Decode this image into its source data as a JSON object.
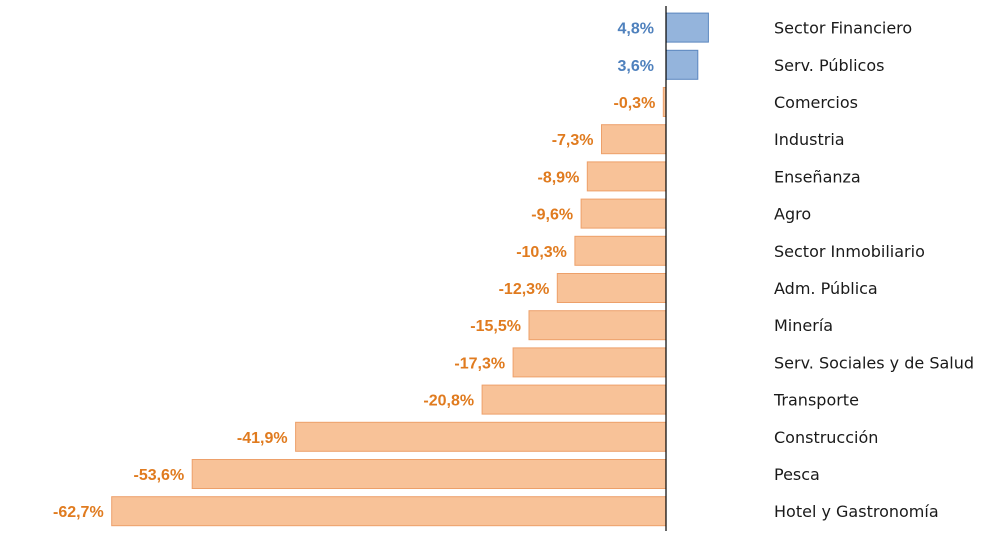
{
  "chart_data": {
    "type": "bar",
    "orientation": "horizontal",
    "title": "",
    "xlabel": "",
    "ylabel": "",
    "xlim": [
      -62.7,
      4.8
    ],
    "grid": false,
    "legend": "none",
    "categories": [
      "Sector Financiero",
      "Serv. Públicos",
      "Comercios",
      "Industria",
      "Enseñanza",
      "Agro",
      "Sector Inmobiliario",
      "Adm. Pública",
      "Minería",
      "Serv. Sociales y de Salud",
      "Transporte",
      "Construcción",
      "Pesca",
      "Hotel y Gastronomía"
    ],
    "values": [
      4.8,
      3.6,
      -0.3,
      -7.3,
      -8.9,
      -9.6,
      -10.3,
      -12.3,
      -15.5,
      -17.3,
      -20.8,
      -41.9,
      -53.6,
      -62.7
    ],
    "value_labels": [
      "4,8%",
      "3,6%",
      "-0,3%",
      "-7,3%",
      "-8,9%",
      "-9,6%",
      "-10,3%",
      "-12,3%",
      "-15,5%",
      "-17,3%",
      "-20,8%",
      "-41,9%",
      "-53,6%",
      "-62,7%"
    ],
    "colors": {
      "positive_fill": "#94b4dc",
      "positive_stroke": "#5a86bf",
      "positive_label": "#4f81bd",
      "negative_fill": "#f8c298",
      "negative_stroke": "#eda06a",
      "negative_label": "#e07b1f",
      "axis": "#000000"
    }
  }
}
